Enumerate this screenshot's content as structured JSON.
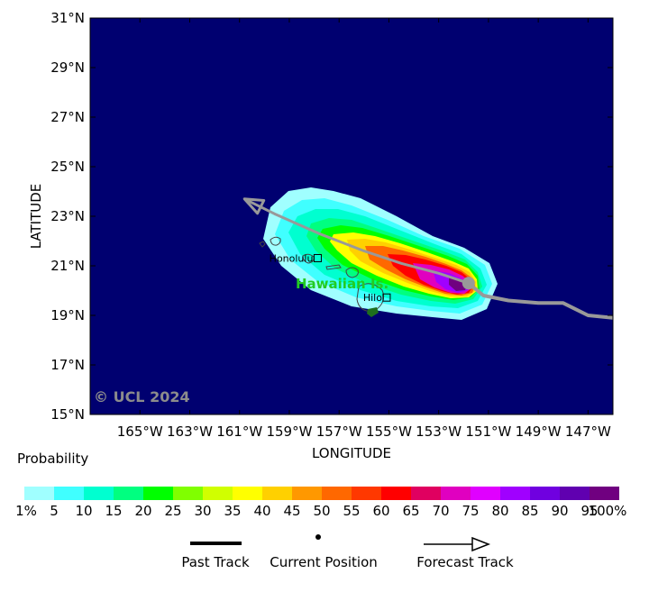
{
  "map": {
    "region_label": "Hawaiian Is.",
    "copyright": "© UCL 2024",
    "cities": [
      {
        "name": "Honolulu",
        "lon": -157.86,
        "lat": 21.31
      },
      {
        "name": "Hilo",
        "lon": -155.09,
        "lat": 19.72
      }
    ],
    "x_axis": {
      "title": "LONGITUDE",
      "range": [
        -167,
        -146
      ],
      "ticks": [
        {
          "value": -165,
          "label": "165°W"
        },
        {
          "value": -163,
          "label": "163°W"
        },
        {
          "value": -161,
          "label": "161°W"
        },
        {
          "value": -159,
          "label": "159°W"
        },
        {
          "value": -157,
          "label": "157°W"
        },
        {
          "value": -155,
          "label": "155°W"
        },
        {
          "value": -153,
          "label": "153°W"
        },
        {
          "value": -151,
          "label": "151°W"
        },
        {
          "value": -149,
          "label": "149°W"
        },
        {
          "value": -147,
          "label": "147°W"
        }
      ]
    },
    "y_axis": {
      "title": "LATITUDE",
      "range": [
        15,
        31
      ],
      "ticks": [
        {
          "value": 31,
          "label": "31°N"
        },
        {
          "value": 29,
          "label": "29°N"
        },
        {
          "value": 27,
          "label": "27°N"
        },
        {
          "value": 25,
          "label": "25°N"
        },
        {
          "value": 23,
          "label": "23°N"
        },
        {
          "value": 21,
          "label": "21°N"
        },
        {
          "value": 19,
          "label": "19°N"
        },
        {
          "value": 17,
          "label": "17°N"
        },
        {
          "value": 15,
          "label": "15°N"
        }
      ]
    },
    "past_track": [
      {
        "lon": -146,
        "lat": 18.9
      },
      {
        "lon": -147.0,
        "lat": 19.0
      },
      {
        "lon": -148.0,
        "lat": 19.5
      },
      {
        "lon": -149.0,
        "lat": 19.5
      },
      {
        "lon": -150.2,
        "lat": 19.6
      },
      {
        "lon": -151.2,
        "lat": 19.8
      },
      {
        "lon": -151.8,
        "lat": 20.3
      }
    ],
    "current_position": {
      "lon": -151.8,
      "lat": 20.3
    },
    "forecast_track": [
      {
        "lon": -151.8,
        "lat": 20.3
      },
      {
        "lon": -153.0,
        "lat": 20.7
      },
      {
        "lon": -154.5,
        "lat": 21.1
      },
      {
        "lon": -156.0,
        "lat": 21.6
      },
      {
        "lon": -157.8,
        "lat": 22.3
      },
      {
        "lon": -159.6,
        "lat": 23.1
      },
      {
        "lon": -160.8,
        "lat": 23.7
      }
    ]
  },
  "legend": {
    "title": "Probability",
    "colors": [
      "#a0ffff",
      "#40ffff",
      "#00ffd0",
      "#00ff80",
      "#00ff00",
      "#80ff00",
      "#d0ff00",
      "#ffff00",
      "#ffd000",
      "#ff9800",
      "#ff6800",
      "#ff3800",
      "#ff0000",
      "#e00060",
      "#e000c0",
      "#e000ff",
      "#a000ff",
      "#7000e0",
      "#6000b0",
      "#700080"
    ],
    "labels": [
      "1%",
      "5",
      "10",
      "15",
      "20",
      "25",
      "30",
      "35",
      "40",
      "45",
      "50",
      "55",
      "60",
      "65",
      "70",
      "75",
      "80",
      "85",
      "90",
      "95",
      "100%"
    ],
    "past_track_label": "Past Track",
    "current_position_label": "Current Position",
    "forecast_track_label": "Forecast Track"
  },
  "colors": {
    "ocean": "#000070",
    "track": "#999999",
    "land": "#1e6e1e",
    "region_label": "#22cc22",
    "copyright": "#8c8c8c"
  }
}
